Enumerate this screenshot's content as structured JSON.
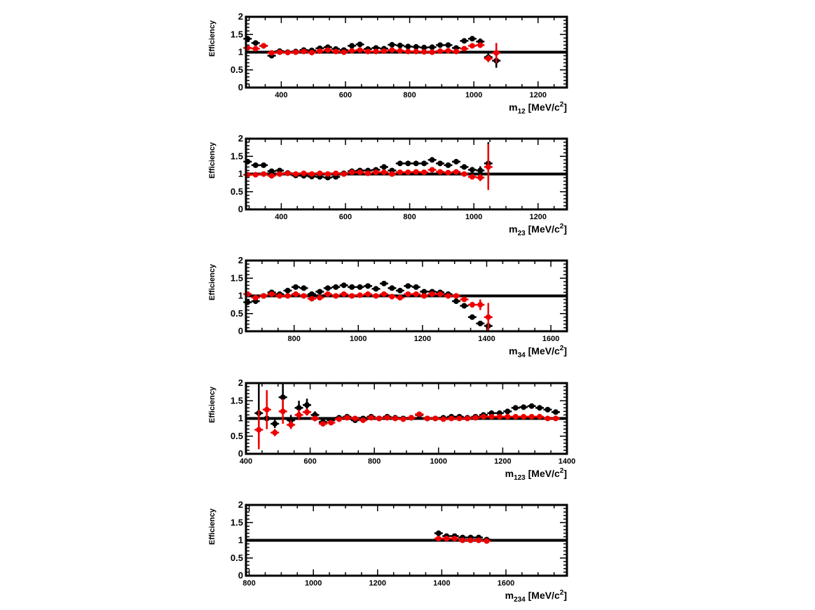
{
  "chart_data": [
    {
      "type": "scatter",
      "xlabel": "m12 [MeV/c2]",
      "xlabel_parts": {
        "main": "m",
        "sub": "12",
        "unit_pre": " [MeV/c",
        "sup": "2",
        "unit_post": "]"
      },
      "ylabel": "Efficiency",
      "xlim": [
        290,
        1290
      ],
      "ylim": [
        0,
        2
      ],
      "xticks": [
        400,
        600,
        800,
        1000,
        1200
      ],
      "yticks": [
        0,
        0.5,
        1,
        1.5,
        2
      ],
      "ytick_labels": [
        "0",
        "0.5",
        "1",
        "1.5",
        "2"
      ],
      "reference_line": 1,
      "series": [
        {
          "color": "#000000",
          "x": [
            295,
            320,
            345,
            370,
            395,
            420,
            445,
            470,
            495,
            520,
            545,
            570,
            595,
            620,
            645,
            670,
            695,
            720,
            745,
            770,
            795,
            820,
            845,
            870,
            895,
            920,
            945,
            970,
            995,
            1020,
            1045,
            1070
          ],
          "y": [
            1.38,
            1.26,
            1.18,
            0.9,
            1.03,
            1.0,
            1.02,
            1.06,
            1.05,
            1.11,
            1.14,
            1.09,
            1.06,
            1.18,
            1.22,
            1.09,
            1.12,
            1.1,
            1.21,
            1.19,
            1.16,
            1.15,
            1.13,
            1.14,
            1.2,
            1.2,
            1.12,
            1.32,
            1.38,
            1.3,
            0.86,
            0.76
          ],
          "err": [
            0.05,
            0.04,
            0.04,
            0.05,
            0.04,
            0.04,
            0.04,
            0.04,
            0.04,
            0.04,
            0.04,
            0.04,
            0.04,
            0.04,
            0.04,
            0.04,
            0.04,
            0.04,
            0.04,
            0.04,
            0.04,
            0.04,
            0.04,
            0.04,
            0.04,
            0.04,
            0.04,
            0.05,
            0.07,
            0.09,
            0.1,
            0.2
          ]
        },
        {
          "color": "#ee0000",
          "x": [
            295,
            320,
            345,
            370,
            395,
            420,
            445,
            470,
            495,
            520,
            545,
            570,
            595,
            620,
            645,
            670,
            695,
            720,
            745,
            770,
            795,
            820,
            845,
            870,
            895,
            920,
            945,
            970,
            995,
            1020,
            1045,
            1070
          ],
          "y": [
            1.12,
            1.1,
            1.18,
            0.98,
            1.0,
            0.99,
            1.0,
            1.02,
            0.99,
            1.03,
            1.06,
            1.02,
            1.0,
            1.04,
            1.06,
            1.02,
            1.02,
            1.03,
            1.06,
            1.04,
            1.02,
            1.02,
            1.01,
            1.0,
            1.03,
            1.04,
            1.02,
            1.1,
            1.18,
            1.2,
            0.82,
            0.98
          ],
          "err": [
            0.04,
            0.04,
            0.04,
            0.04,
            0.04,
            0.04,
            0.04,
            0.04,
            0.04,
            0.04,
            0.04,
            0.04,
            0.04,
            0.04,
            0.04,
            0.04,
            0.04,
            0.04,
            0.04,
            0.04,
            0.04,
            0.04,
            0.04,
            0.04,
            0.04,
            0.04,
            0.04,
            0.05,
            0.07,
            0.08,
            0.1,
            0.28
          ]
        }
      ]
    },
    {
      "type": "scatter",
      "xlabel": "m23 [MeV/c2]",
      "xlabel_parts": {
        "main": "m",
        "sub": "23",
        "unit_pre": " [MeV/c",
        "sup": "2",
        "unit_post": "]"
      },
      "ylabel": "Efficiency",
      "xlim": [
        290,
        1290
      ],
      "ylim": [
        0,
        2
      ],
      "xticks": [
        400,
        600,
        800,
        1000,
        1200
      ],
      "yticks": [
        0,
        0.5,
        1,
        1.5,
        2
      ],
      "ytick_labels": [
        "0",
        "0.5",
        "1",
        "1.5",
        "2"
      ],
      "reference_line": 1,
      "series": [
        {
          "color": "#000000",
          "x": [
            295,
            320,
            345,
            370,
            395,
            420,
            445,
            470,
            495,
            520,
            545,
            570,
            595,
            620,
            645,
            670,
            695,
            720,
            745,
            770,
            795,
            820,
            845,
            870,
            895,
            920,
            945,
            970,
            995,
            1020,
            1045
          ],
          "y": [
            1.35,
            1.25,
            1.25,
            1.08,
            1.1,
            1.03,
            0.96,
            0.95,
            0.93,
            0.92,
            0.9,
            0.92,
            1.02,
            1.08,
            1.1,
            1.1,
            1.12,
            1.2,
            1.1,
            1.3,
            1.3,
            1.3,
            1.3,
            1.4,
            1.3,
            1.25,
            1.35,
            1.2,
            1.12,
            1.1,
            1.3
          ],
          "err": [
            0.06,
            0.04,
            0.04,
            0.04,
            0.04,
            0.04,
            0.04,
            0.04,
            0.04,
            0.04,
            0.04,
            0.04,
            0.04,
            0.04,
            0.04,
            0.04,
            0.04,
            0.04,
            0.04,
            0.04,
            0.04,
            0.04,
            0.04,
            0.04,
            0.04,
            0.04,
            0.05,
            0.06,
            0.08,
            0.12,
            0.6
          ]
        },
        {
          "color": "#ee0000",
          "x": [
            295,
            320,
            345,
            370,
            395,
            420,
            445,
            470,
            495,
            520,
            545,
            570,
            595,
            620,
            645,
            670,
            695,
            720,
            745,
            770,
            795,
            820,
            845,
            870,
            895,
            920,
            945,
            970,
            995,
            1020,
            1045
          ],
          "y": [
            0.98,
            0.98,
            1.0,
            0.95,
            1.0,
            1.02,
            1.0,
            1.02,
            1.0,
            1.02,
            1.0,
            1.02,
            1.0,
            1.05,
            1.05,
            1.02,
            1.05,
            1.05,
            1.0,
            1.05,
            1.05,
            1.06,
            1.05,
            1.12,
            1.06,
            1.04,
            1.06,
            1.0,
            0.92,
            0.9,
            1.2
          ],
          "err": [
            0.04,
            0.04,
            0.04,
            0.04,
            0.04,
            0.04,
            0.04,
            0.04,
            0.04,
            0.04,
            0.04,
            0.04,
            0.04,
            0.04,
            0.04,
            0.04,
            0.04,
            0.04,
            0.04,
            0.04,
            0.04,
            0.04,
            0.04,
            0.04,
            0.04,
            0.04,
            0.04,
            0.05,
            0.07,
            0.1,
            0.65
          ]
        }
      ]
    },
    {
      "type": "scatter",
      "xlabel": "m34 [MeV/c2]",
      "xlabel_parts": {
        "main": "m",
        "sub": "34",
        "unit_pre": " [MeV/c",
        "sup": "2",
        "unit_post": "]"
      },
      "ylabel": "Efficiency",
      "xlim": [
        650,
        1650
      ],
      "ylim": [
        0,
        2
      ],
      "xticks": [
        800,
        1000,
        1200,
        1400,
        1600
      ],
      "yticks": [
        0,
        0.5,
        1,
        1.5,
        2
      ],
      "ytick_labels": [
        "0",
        "0.5",
        "1",
        "1.5",
        "2"
      ],
      "reference_line": 1,
      "series": [
        {
          "color": "#000000",
          "x": [
            655,
            680,
            705,
            730,
            755,
            780,
            805,
            830,
            855,
            880,
            905,
            930,
            955,
            980,
            1005,
            1030,
            1055,
            1080,
            1105,
            1130,
            1155,
            1180,
            1205,
            1230,
            1255,
            1280,
            1305,
            1330,
            1355,
            1380,
            1405
          ],
          "y": [
            0.82,
            0.85,
            1.0,
            1.1,
            1.05,
            1.15,
            1.25,
            1.22,
            1.05,
            1.12,
            1.22,
            1.25,
            1.3,
            1.25,
            1.25,
            1.28,
            1.2,
            1.35,
            1.22,
            1.15,
            1.28,
            1.25,
            1.12,
            1.12,
            1.1,
            1.05,
            0.85,
            0.72,
            0.4,
            0.22,
            0.15
          ],
          "err": [
            0.04,
            0.04,
            0.04,
            0.04,
            0.04,
            0.04,
            0.04,
            0.04,
            0.04,
            0.04,
            0.04,
            0.04,
            0.04,
            0.04,
            0.04,
            0.04,
            0.04,
            0.04,
            0.04,
            0.04,
            0.04,
            0.04,
            0.04,
            0.04,
            0.04,
            0.04,
            0.04,
            0.04,
            0.04,
            0.04,
            0.04
          ]
        },
        {
          "color": "#ee0000",
          "x": [
            655,
            680,
            705,
            730,
            755,
            780,
            805,
            830,
            855,
            880,
            905,
            930,
            955,
            980,
            1005,
            1030,
            1055,
            1080,
            1105,
            1130,
            1155,
            1180,
            1205,
            1230,
            1255,
            1280,
            1305,
            1330,
            1355,
            1380,
            1405
          ],
          "y": [
            1.05,
            0.95,
            1.0,
            1.05,
            1.0,
            1.0,
            1.05,
            1.0,
            0.92,
            0.95,
            1.05,
            1.0,
            1.05,
            1.0,
            1.02,
            1.05,
            1.0,
            1.05,
            0.98,
            0.95,
            1.05,
            1.05,
            1.0,
            1.05,
            1.05,
            1.0,
            1.0,
            0.9,
            0.75,
            0.75,
            0.4
          ],
          "err": [
            0.04,
            0.04,
            0.04,
            0.04,
            0.04,
            0.04,
            0.04,
            0.04,
            0.04,
            0.04,
            0.04,
            0.04,
            0.04,
            0.04,
            0.04,
            0.04,
            0.04,
            0.04,
            0.04,
            0.04,
            0.04,
            0.04,
            0.04,
            0.04,
            0.04,
            0.04,
            0.04,
            0.05,
            0.08,
            0.15,
            0.4
          ]
        }
      ]
    },
    {
      "type": "scatter",
      "xlabel": "m123 [MeV/c2]",
      "xlabel_parts": {
        "main": "m",
        "sub": "123",
        "unit_pre": " [MeV/c",
        "sup": "2",
        "unit_post": "]"
      },
      "ylabel": "Efficiency",
      "xlim": [
        400,
        1400
      ],
      "ylim": [
        0,
        2
      ],
      "xticks": [
        400,
        600,
        800,
        1000,
        1200,
        1400
      ],
      "yticks": [
        0,
        0.5,
        1,
        1.5,
        2
      ],
      "ytick_labels": [
        "0",
        "0.5",
        "1",
        "1.5",
        "2"
      ],
      "reference_line": 1,
      "series": [
        {
          "color": "#000000",
          "x": [
            440,
            465,
            490,
            515,
            540,
            565,
            590,
            615,
            640,
            665,
            690,
            715,
            740,
            765,
            790,
            815,
            840,
            865,
            890,
            915,
            940,
            965,
            990,
            1015,
            1040,
            1065,
            1090,
            1115,
            1140,
            1165,
            1190,
            1215,
            1240,
            1265,
            1290,
            1315,
            1340,
            1365
          ],
          "y": [
            1.15,
            1.0,
            0.85,
            1.6,
            0.95,
            1.3,
            1.38,
            1.1,
            0.9,
            0.95,
            1.02,
            1.05,
            0.95,
            1.0,
            1.05,
            1.0,
            1.05,
            1.02,
            1.0,
            1.02,
            1.1,
            1.0,
            1.0,
            1.02,
            1.05,
            1.05,
            1.02,
            1.05,
            1.1,
            1.15,
            1.15,
            1.2,
            1.3,
            1.32,
            1.35,
            1.3,
            1.25,
            1.18
          ],
          "err": [
            0.9,
            0.3,
            0.12,
            0.4,
            0.15,
            0.2,
            0.18,
            0.1,
            0.05,
            0.05,
            0.04,
            0.04,
            0.04,
            0.04,
            0.04,
            0.04,
            0.04,
            0.04,
            0.04,
            0.04,
            0.04,
            0.04,
            0.04,
            0.04,
            0.04,
            0.04,
            0.04,
            0.04,
            0.04,
            0.04,
            0.04,
            0.04,
            0.04,
            0.04,
            0.04,
            0.04,
            0.04,
            0.04
          ]
        },
        {
          "color": "#ee0000",
          "x": [
            440,
            465,
            490,
            515,
            540,
            565,
            590,
            615,
            640,
            665,
            690,
            715,
            740,
            765,
            790,
            815,
            840,
            865,
            890,
            915,
            940,
            965,
            990,
            1015,
            1040,
            1065,
            1090,
            1115,
            1140,
            1165,
            1190,
            1215,
            1240,
            1265,
            1290,
            1315,
            1340,
            1365
          ],
          "y": [
            0.68,
            1.25,
            0.6,
            1.2,
            0.82,
            1.1,
            1.18,
            1.0,
            0.85,
            0.88,
            0.98,
            1.02,
            1.0,
            0.95,
            1.02,
            1.0,
            1.02,
            1.0,
            0.98,
            1.02,
            1.12,
            1.0,
            1.0,
            0.98,
            1.0,
            1.0,
            1.0,
            1.02,
            1.05,
            1.05,
            1.05,
            1.05,
            1.05,
            1.05,
            1.05,
            1.05,
            1.0,
            1.0
          ],
          "err": [
            0.55,
            0.55,
            0.1,
            0.35,
            0.12,
            0.15,
            0.1,
            0.08,
            0.05,
            0.05,
            0.04,
            0.04,
            0.04,
            0.04,
            0.04,
            0.04,
            0.04,
            0.04,
            0.04,
            0.04,
            0.04,
            0.04,
            0.04,
            0.04,
            0.04,
            0.04,
            0.04,
            0.04,
            0.04,
            0.04,
            0.04,
            0.04,
            0.04,
            0.04,
            0.04,
            0.04,
            0.04,
            0.04
          ]
        }
      ]
    },
    {
      "type": "scatter",
      "xlabel": "m234 [MeV/c2]",
      "xlabel_parts": {
        "main": "m",
        "sub": "234",
        "unit_pre": " [MeV/c",
        "sup": "2",
        "unit_post": "]"
      },
      "ylabel": "Efficiency",
      "xlim": [
        790,
        1790
      ],
      "ylim": [
        0,
        2
      ],
      "xticks": [
        800,
        1000,
        1200,
        1400,
        1600
      ],
      "yticks": [
        0,
        0.5,
        1,
        1.5,
        2
      ],
      "ytick_labels": [
        "0",
        "0.5",
        "1",
        "1.5",
        "2"
      ],
      "reference_line": 1,
      "series": [
        {
          "color": "#000000",
          "x": [
            1390,
            1415,
            1440,
            1465,
            1490,
            1515,
            1540
          ],
          "y": [
            1.2,
            1.12,
            1.12,
            1.08,
            1.08,
            1.08,
            1.02
          ],
          "err": [
            0.04,
            0.04,
            0.04,
            0.04,
            0.04,
            0.04,
            0.04
          ]
        },
        {
          "color": "#ee0000",
          "x": [
            1390,
            1415,
            1440,
            1465,
            1490,
            1515,
            1540
          ],
          "y": [
            1.05,
            1.05,
            1.05,
            1.0,
            1.0,
            1.0,
            0.98
          ],
          "err": [
            0.04,
            0.04,
            0.04,
            0.04,
            0.04,
            0.04,
            0.04
          ]
        }
      ]
    }
  ]
}
